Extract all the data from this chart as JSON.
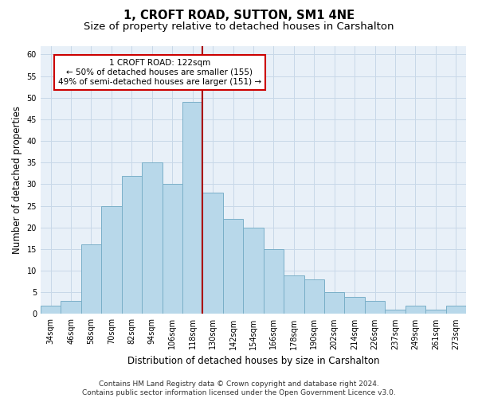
{
  "title": "1, CROFT ROAD, SUTTON, SM1 4NE",
  "subtitle": "Size of property relative to detached houses in Carshalton",
  "xlabel": "Distribution of detached houses by size in Carshalton",
  "ylabel": "Number of detached properties",
  "categories": [
    "34sqm",
    "46sqm",
    "58sqm",
    "70sqm",
    "82sqm",
    "94sqm",
    "106sqm",
    "118sqm",
    "130sqm",
    "142sqm",
    "154sqm",
    "166sqm",
    "178sqm",
    "190sqm",
    "202sqm",
    "214sqm",
    "226sqm",
    "237sqm",
    "249sqm",
    "261sqm",
    "273sqm"
  ],
  "bar_heights": [
    2,
    3,
    16,
    25,
    32,
    35,
    30,
    49,
    28,
    22,
    20,
    15,
    9,
    8,
    5,
    4,
    3,
    1,
    2,
    1,
    2
  ],
  "bar_color": "#b8d8ea",
  "bar_edge_color": "#7aafc8",
  "property_line_x": 7.5,
  "property_line_color": "#aa0000",
  "annotation_text": "1 CROFT ROAD: 122sqm\n← 50% of detached houses are smaller (155)\n49% of semi-detached houses are larger (151) →",
  "annotation_box_color": "#cc0000",
  "ylim": [
    0,
    62
  ],
  "yticks": [
    0,
    5,
    10,
    15,
    20,
    25,
    30,
    35,
    40,
    45,
    50,
    55,
    60
  ],
  "grid_color": "#c8d8e8",
  "background_color": "#e8f0f8",
  "footnote": "Contains HM Land Registry data © Crown copyright and database right 2024.\nContains public sector information licensed under the Open Government Licence v3.0.",
  "title_fontsize": 10.5,
  "subtitle_fontsize": 9.5,
  "xlabel_fontsize": 8.5,
  "ylabel_fontsize": 8.5,
  "tick_fontsize": 7,
  "annot_fontsize": 7.5,
  "footnote_fontsize": 6.5
}
